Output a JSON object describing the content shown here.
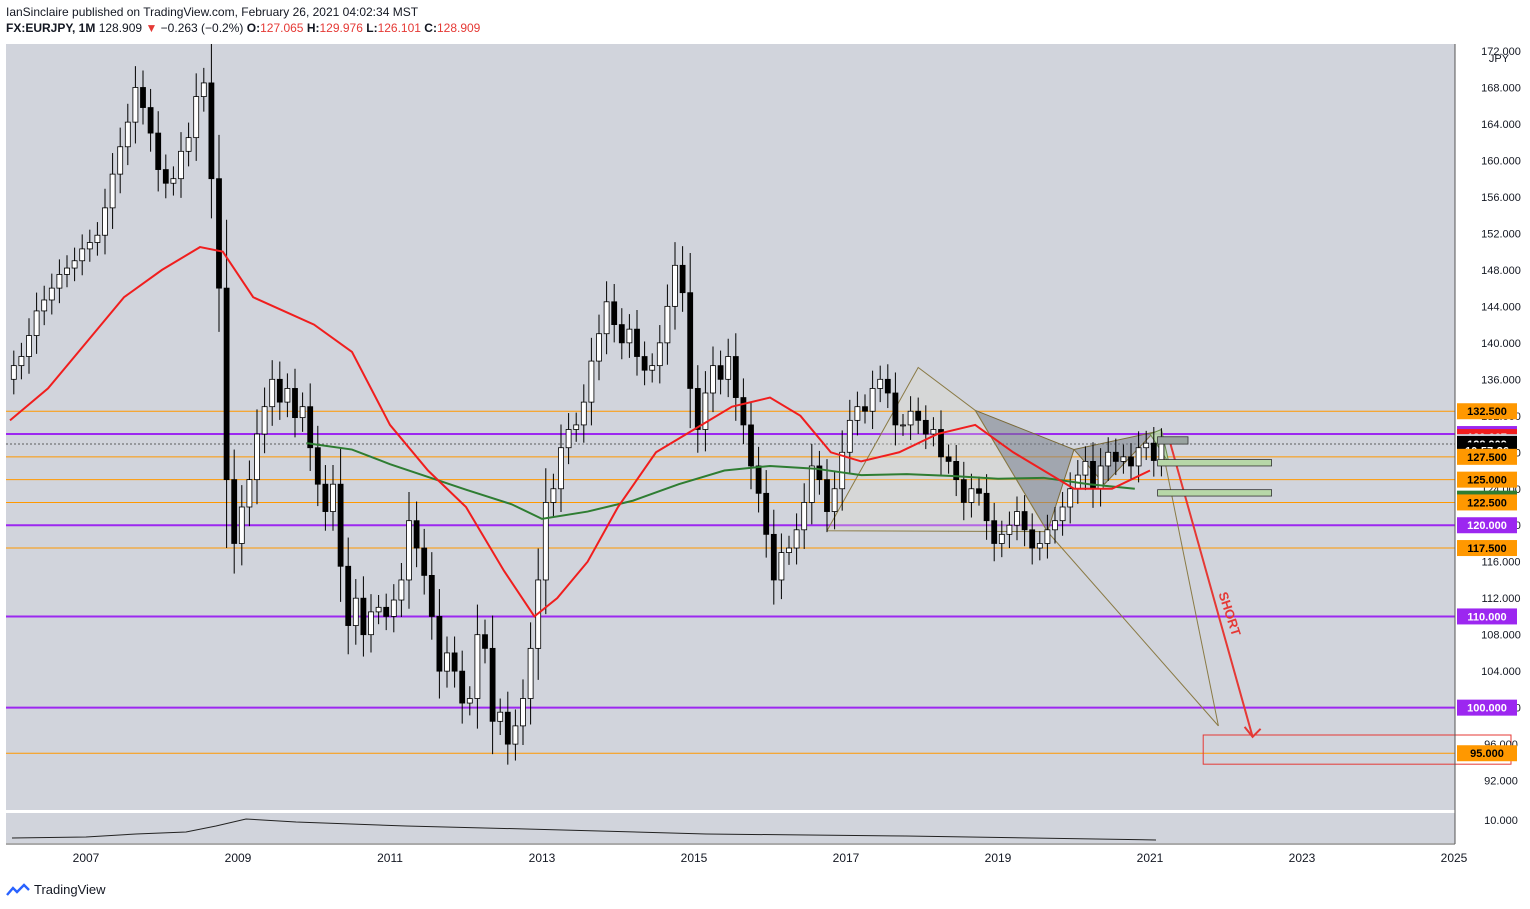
{
  "header": {
    "publisher_line": "IanSinclaire published on TradingView.com, February 26, 2021 04:02:34 MST",
    "symbol": "FX:EURJPY, 1M",
    "last": "128.909",
    "change_arrow": "▼",
    "change": "−0.263 (−0.2%)",
    "o_label": "O:",
    "o_value": "127.065",
    "h_label": "H:",
    "h_value": "129.976",
    "l_label": "L:",
    "l_value": "126.101",
    "c_label": "C:",
    "c_value": "128.909"
  },
  "footer": {
    "brand": "TradingView"
  },
  "colors": {
    "plot_bg": "#d1d4dc",
    "purple": "#9c27f0",
    "orange": "#ff9800",
    "sma_red": "#f01e1e",
    "sma_green": "#2e7d32",
    "short_arrow": "#e53935",
    "pattern_gray": "#7a7f8a",
    "pattern_green": "#b7d7a8"
  },
  "chart_data": {
    "type": "candlestick",
    "currency_label": "JPY",
    "y_scale": {
      "min": 90,
      "max": 172,
      "ticks": [
        92,
        96,
        100,
        104,
        108,
        112,
        116,
        120,
        124,
        128,
        132,
        136,
        140,
        144,
        148,
        152,
        156,
        160,
        164,
        168,
        172
      ]
    },
    "x_labels": [
      "2007",
      "2009",
      "2011",
      "2013",
      "2015",
      "2017",
      "2019",
      "2021",
      "2023",
      "2025"
    ],
    "price_tags": [
      {
        "label": "132.500",
        "value": 132.5,
        "bg": "#ff9800",
        "fg": "#000000"
      },
      {
        "label": "130.000",
        "value": 130.0,
        "bg": "#9c27f0",
        "fg": "#ffffff"
      },
      {
        "label": "129.667",
        "value": 129.667,
        "bg": "#f01e1e",
        "fg": "#ffffff"
      },
      {
        "label": "129.115",
        "value": 129.115,
        "bg": "#c8ccd6",
        "fg": "#000000"
      },
      {
        "label": "128.909",
        "value": 128.909,
        "bg": "#000000",
        "fg": "#ffffff"
      },
      {
        "label": "10:57:26",
        "value": 128.2,
        "bg": "#000000",
        "fg": "#ffffff"
      },
      {
        "label": "127.500",
        "value": 127.5,
        "bg": "#ff9800",
        "fg": "#000000"
      },
      {
        "label": "125.000",
        "value": 125.0,
        "bg": "#ff9800",
        "fg": "#000000"
      },
      {
        "label": "122.915",
        "value": 122.915,
        "bg": "#2e7d32",
        "fg": "#ffffff"
      },
      {
        "label": "122.500",
        "value": 122.5,
        "bg": "#ff9800",
        "fg": "#000000"
      },
      {
        "label": "120.000",
        "value": 120.0,
        "bg": "#9c27f0",
        "fg": "#ffffff"
      },
      {
        "label": "117.500",
        "value": 117.5,
        "bg": "#ff9800",
        "fg": "#000000"
      },
      {
        "label": "110.000",
        "value": 110.0,
        "bg": "#9c27f0",
        "fg": "#ffffff"
      },
      {
        "label": "100.000",
        "value": 100.0,
        "bg": "#9c27f0",
        "fg": "#ffffff"
      },
      {
        "label": "95.000",
        "value": 95.0,
        "bg": "#ff9800",
        "fg": "#000000"
      }
    ],
    "purple_levels": [
      130.0,
      120.0,
      110.0,
      100.0
    ],
    "orange_levels": [
      132.5,
      127.5,
      125.0,
      122.5,
      117.5,
      95.0
    ],
    "annotation": "SHORT",
    "indicator": {
      "label": "10.000"
    },
    "sma_red": [
      [
        2006.0,
        131.5
      ],
      [
        2006.5,
        135
      ],
      [
        2007.0,
        140
      ],
      [
        2007.5,
        145
      ],
      [
        2008.0,
        148
      ],
      [
        2008.5,
        150.5
      ],
      [
        2008.8,
        150
      ],
      [
        2009.2,
        145
      ],
      [
        2009.6,
        143.5
      ],
      [
        2010.0,
        142
      ],
      [
        2010.5,
        139
      ],
      [
        2011.0,
        131
      ],
      [
        2011.5,
        126
      ],
      [
        2012.0,
        122
      ],
      [
        2012.5,
        115
      ],
      [
        2012.9,
        110
      ],
      [
        2013.2,
        112
      ],
      [
        2013.6,
        116
      ],
      [
        2014.0,
        122
      ],
      [
        2014.5,
        128
      ],
      [
        2015.0,
        130.5
      ],
      [
        2015.5,
        133
      ],
      [
        2016.0,
        134
      ],
      [
        2016.4,
        132
      ],
      [
        2016.8,
        128
      ],
      [
        2017.2,
        127
      ],
      [
        2017.7,
        128
      ],
      [
        2018.2,
        130
      ],
      [
        2018.7,
        131
      ],
      [
        2019.2,
        128
      ],
      [
        2019.6,
        126
      ],
      [
        2020.0,
        124
      ],
      [
        2020.5,
        124
      ],
      [
        2021.0,
        126
      ]
    ],
    "sma_green": [
      [
        2009.9,
        129.0
      ],
      [
        2010.5,
        128.3
      ],
      [
        2011.0,
        126.7
      ],
      [
        2011.5,
        125.3
      ],
      [
        2012.0,
        123.9
      ],
      [
        2012.6,
        122.3
      ],
      [
        2013.0,
        120.7
      ],
      [
        2013.6,
        121.5
      ],
      [
        2014.2,
        122.7
      ],
      [
        2014.8,
        124.5
      ],
      [
        2015.4,
        126.0
      ],
      [
        2016.0,
        126.5
      ],
      [
        2016.6,
        126.2
      ],
      [
        2017.2,
        125.5
      ],
      [
        2017.8,
        125.6
      ],
      [
        2018.4,
        125.4
      ],
      [
        2019.0,
        125.1
      ],
      [
        2019.6,
        125.2
      ],
      [
        2020.2,
        124.5
      ],
      [
        2020.8,
        124.0
      ]
    ],
    "monthly": [
      {
        "x": 2006.05,
        "c": 137.5
      },
      {
        "x": 2006.15,
        "c": 138.5
      },
      {
        "x": 2006.25,
        "c": 140.8
      },
      {
        "x": 2006.35,
        "c": 143.5
      },
      {
        "x": 2006.45,
        "c": 144.7
      },
      {
        "x": 2006.55,
        "c": 146.0
      },
      {
        "x": 2006.65,
        "c": 147.5
      },
      {
        "x": 2006.75,
        "c": 148.2
      },
      {
        "x": 2006.85,
        "c": 149.0
      },
      {
        "x": 2006.95,
        "c": 150.3
      },
      {
        "x": 2007.05,
        "c": 151.0
      },
      {
        "x": 2007.15,
        "c": 151.8
      },
      {
        "x": 2007.25,
        "c": 154.8
      },
      {
        "x": 2007.35,
        "c": 158.5
      },
      {
        "x": 2007.45,
        "c": 161.5
      },
      {
        "x": 2007.55,
        "c": 164.2
      },
      {
        "x": 2007.65,
        "c": 168.0
      },
      {
        "x": 2007.75,
        "c": 165.8
      },
      {
        "x": 2007.85,
        "c": 163.0
      },
      {
        "x": 2007.95,
        "c": 159.0
      },
      {
        "x": 2008.05,
        "c": 157.5
      },
      {
        "x": 2008.15,
        "c": 158.0
      },
      {
        "x": 2008.25,
        "c": 161.0
      },
      {
        "x": 2008.35,
        "c": 162.5
      },
      {
        "x": 2008.45,
        "c": 167.0
      },
      {
        "x": 2008.55,
        "c": 168.5
      },
      {
        "x": 2008.65,
        "c": 158.0
      },
      {
        "x": 2008.75,
        "c": 146.0
      },
      {
        "x": 2008.85,
        "c": 125.0
      },
      {
        "x": 2008.95,
        "c": 118.0
      },
      {
        "x": 2009.05,
        "c": 122.0
      },
      {
        "x": 2009.15,
        "c": 125.0
      },
      {
        "x": 2009.25,
        "c": 130.0
      },
      {
        "x": 2009.35,
        "c": 133.0
      },
      {
        "x": 2009.45,
        "c": 136.0
      },
      {
        "x": 2009.55,
        "c": 133.5
      },
      {
        "x": 2009.65,
        "c": 135.0
      },
      {
        "x": 2009.75,
        "c": 131.8
      },
      {
        "x": 2009.85,
        "c": 133.0
      },
      {
        "x": 2009.95,
        "c": 128.5
      },
      {
        "x": 2010.05,
        "c": 124.5
      },
      {
        "x": 2010.15,
        "c": 121.5
      },
      {
        "x": 2010.25,
        "c": 124.5
      },
      {
        "x": 2010.35,
        "c": 115.5
      },
      {
        "x": 2010.45,
        "c": 109.0
      },
      {
        "x": 2010.55,
        "c": 112.0
      },
      {
        "x": 2010.65,
        "c": 108.0
      },
      {
        "x": 2010.75,
        "c": 110.5
      },
      {
        "x": 2010.85,
        "c": 111.0
      },
      {
        "x": 2010.95,
        "c": 110.0
      },
      {
        "x": 2011.05,
        "c": 111.8
      },
      {
        "x": 2011.15,
        "c": 114.0
      },
      {
        "x": 2011.25,
        "c": 120.5
      },
      {
        "x": 2011.35,
        "c": 117.5
      },
      {
        "x": 2011.45,
        "c": 114.5
      },
      {
        "x": 2011.55,
        "c": 110.0
      },
      {
        "x": 2011.65,
        "c": 104.0
      },
      {
        "x": 2011.75,
        "c": 106.0
      },
      {
        "x": 2011.85,
        "c": 104.0
      },
      {
        "x": 2011.95,
        "c": 100.5
      },
      {
        "x": 2012.05,
        "c": 101.0
      },
      {
        "x": 2012.15,
        "c": 108.0
      },
      {
        "x": 2012.25,
        "c": 106.5
      },
      {
        "x": 2012.35,
        "c": 98.5
      },
      {
        "x": 2012.45,
        "c": 99.5
      },
      {
        "x": 2012.55,
        "c": 96.0
      },
      {
        "x": 2012.65,
        "c": 98.0
      },
      {
        "x": 2012.75,
        "c": 101.0
      },
      {
        "x": 2012.85,
        "c": 106.5
      },
      {
        "x": 2012.95,
        "c": 114.0
      },
      {
        "x": 2013.05,
        "c": 122.5
      },
      {
        "x": 2013.15,
        "c": 124.0
      },
      {
        "x": 2013.25,
        "c": 128.5
      },
      {
        "x": 2013.35,
        "c": 130.5
      },
      {
        "x": 2013.45,
        "c": 131.0
      },
      {
        "x": 2013.55,
        "c": 133.5
      },
      {
        "x": 2013.65,
        "c": 138.0
      },
      {
        "x": 2013.75,
        "c": 141.0
      },
      {
        "x": 2013.85,
        "c": 144.5
      },
      {
        "x": 2013.95,
        "c": 142.0
      },
      {
        "x": 2014.05,
        "c": 140.0
      },
      {
        "x": 2014.15,
        "c": 141.5
      },
      {
        "x": 2014.25,
        "c": 138.5
      },
      {
        "x": 2014.35,
        "c": 137.0
      },
      {
        "x": 2014.45,
        "c": 137.5
      },
      {
        "x": 2014.55,
        "c": 140.0
      },
      {
        "x": 2014.65,
        "c": 144.0
      },
      {
        "x": 2014.75,
        "c": 148.5
      },
      {
        "x": 2014.85,
        "c": 145.5
      },
      {
        "x": 2014.95,
        "c": 135.0
      },
      {
        "x": 2015.05,
        "c": 130.5
      },
      {
        "x": 2015.15,
        "c": 134.5
      },
      {
        "x": 2015.25,
        "c": 137.5
      },
      {
        "x": 2015.35,
        "c": 136.0
      },
      {
        "x": 2015.45,
        "c": 138.5
      },
      {
        "x": 2015.55,
        "c": 134.0
      },
      {
        "x": 2015.65,
        "c": 131.0
      },
      {
        "x": 2015.75,
        "c": 126.5
      },
      {
        "x": 2015.85,
        "c": 123.5
      },
      {
        "x": 2015.95,
        "c": 119.0
      },
      {
        "x": 2016.05,
        "c": 114.0
      },
      {
        "x": 2016.15,
        "c": 117.0
      },
      {
        "x": 2016.25,
        "c": 117.5
      },
      {
        "x": 2016.35,
        "c": 119.5
      },
      {
        "x": 2016.45,
        "c": 122.5
      },
      {
        "x": 2016.55,
        "c": 126.5
      },
      {
        "x": 2016.65,
        "c": 125.0
      },
      {
        "x": 2016.75,
        "c": 121.5
      },
      {
        "x": 2016.85,
        "c": 124.0
      },
      {
        "x": 2016.95,
        "c": 128.0
      },
      {
        "x": 2017.05,
        "c": 131.5
      },
      {
        "x": 2017.15,
        "c": 133.0
      },
      {
        "x": 2017.25,
        "c": 132.5
      },
      {
        "x": 2017.35,
        "c": 135.0
      },
      {
        "x": 2017.45,
        "c": 136.0
      },
      {
        "x": 2017.55,
        "c": 134.5
      },
      {
        "x": 2017.65,
        "c": 131.0
      },
      {
        "x": 2017.75,
        "c": 131.0
      },
      {
        "x": 2017.85,
        "c": 132.5
      },
      {
        "x": 2017.95,
        "c": 131.5
      },
      {
        "x": 2018.05,
        "c": 130.0
      },
      {
        "x": 2018.15,
        "c": 130.5
      },
      {
        "x": 2018.25,
        "c": 127.5
      },
      {
        "x": 2018.35,
        "c": 127.0
      },
      {
        "x": 2018.45,
        "c": 125.0
      },
      {
        "x": 2018.55,
        "c": 122.5
      },
      {
        "x": 2018.65,
        "c": 124.0
      },
      {
        "x": 2018.75,
        "c": 123.5
      },
      {
        "x": 2018.85,
        "c": 120.5
      },
      {
        "x": 2018.95,
        "c": 118.0
      },
      {
        "x": 2019.05,
        "c": 119.0
      },
      {
        "x": 2019.15,
        "c": 120.0
      },
      {
        "x": 2019.25,
        "c": 121.5
      },
      {
        "x": 2019.35,
        "c": 119.5
      },
      {
        "x": 2019.45,
        "c": 117.5
      },
      {
        "x": 2019.55,
        "c": 118.0
      },
      {
        "x": 2019.65,
        "c": 119.5
      },
      {
        "x": 2019.75,
        "c": 120.5
      },
      {
        "x": 2019.85,
        "c": 122.0
      },
      {
        "x": 2019.95,
        "c": 124.0
      },
      {
        "x": 2020.05,
        "c": 125.5
      },
      {
        "x": 2020.15,
        "c": 127.0
      },
      {
        "x": 2020.25,
        "c": 124.0
      },
      {
        "x": 2020.35,
        "c": 126.5
      },
      {
        "x": 2020.45,
        "c": 128.0
      },
      {
        "x": 2020.55,
        "c": 127.0
      },
      {
        "x": 2020.65,
        "c": 127.5
      },
      {
        "x": 2020.75,
        "c": 126.5
      },
      {
        "x": 2020.85,
        "c": 128.5
      },
      {
        "x": 2020.95,
        "c": 129.0
      },
      {
        "x": 2021.05,
        "c": 127.1
      },
      {
        "x": 2021.15,
        "c": 128.9
      }
    ]
  }
}
